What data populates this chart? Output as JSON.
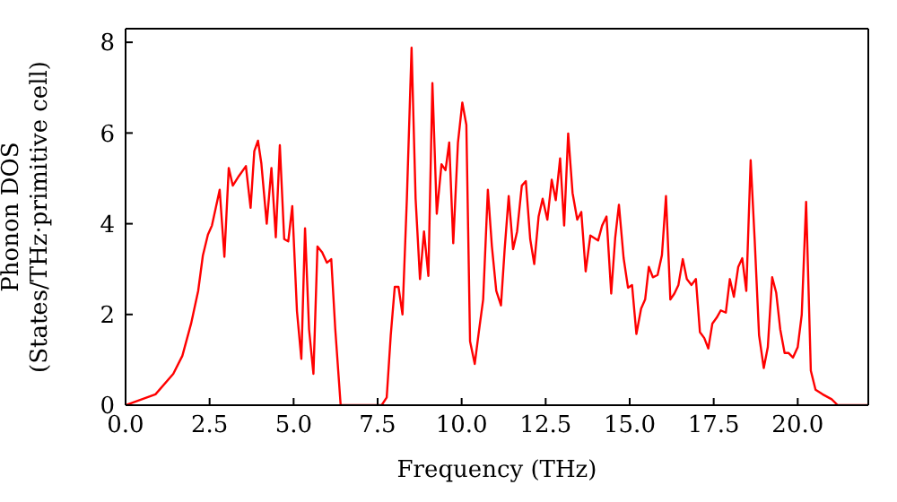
{
  "chart_data": {
    "type": "line",
    "xlabel": "Frequency (THz)",
    "ylabel": "Phonon DOS\n(States/THz·primitive cell)",
    "xlim": [
      0,
      22.1
    ],
    "xticks": [
      {
        "value": 0,
        "label": "0.0"
      },
      {
        "value": 2.5,
        "label": "2.5"
      },
      {
        "value": 5,
        "label": "5.0"
      },
      {
        "value": 7.5,
        "label": "7.5"
      },
      {
        "value": 10,
        "label": "10.0"
      },
      {
        "value": 12.5,
        "label": "12.5"
      },
      {
        "value": 15,
        "label": "15.0"
      },
      {
        "value": 17.5,
        "label": "17.5"
      },
      {
        "value": 20,
        "label": "20.0"
      }
    ],
    "ylim": [
      0,
      8.3
    ],
    "yticks": [
      0,
      2,
      4,
      6,
      8
    ],
    "marker": "none",
    "line_style": "solid",
    "series": [
      {
        "color": "#ff0000",
        "x": [
          0,
          0.89,
          1.42,
          1.69,
          1.95,
          2.16,
          2.3,
          2.45,
          2.57,
          2.8,
          2.94,
          3.07,
          3.19,
          3.37,
          3.58,
          3.72,
          3.83,
          3.94,
          4.04,
          4.2,
          4.34,
          4.47,
          4.59,
          4.72,
          4.84,
          4.96,
          5.1,
          5.23,
          5.34,
          5.46,
          5.59,
          5.71,
          5.85,
          5.99,
          6.12,
          6.24,
          6.4,
          7.62,
          7.77,
          7.89,
          8.01,
          8.12,
          8.24,
          8.37,
          8.51,
          8.63,
          8.76,
          8.88,
          9.01,
          9.13,
          9.26,
          9.4,
          9.52,
          9.63,
          9.75,
          9.89,
          10.02,
          10.14,
          10.25,
          10.39,
          10.51,
          10.64,
          10.78,
          10.9,
          11.03,
          11.17,
          11.28,
          11.4,
          11.53,
          11.65,
          11.79,
          11.91,
          12.04,
          12.16,
          12.29,
          12.41,
          12.55,
          12.68,
          12.8,
          12.93,
          13.05,
          13.17,
          13.3,
          13.44,
          13.56,
          13.69,
          13.83,
          14.06,
          14.18,
          14.31,
          14.45,
          14.57,
          14.68,
          14.82,
          14.95,
          15.07,
          15.2,
          15.34,
          15.46,
          15.57,
          15.69,
          15.83,
          15.96,
          16.08,
          16.21,
          16.33,
          16.45,
          16.58,
          16.7,
          16.84,
          16.97,
          17.09,
          17.22,
          17.34,
          17.46,
          17.59,
          17.71,
          17.86,
          17.98,
          18.1,
          18.23,
          18.35,
          18.47,
          18.6,
          18.72,
          18.85,
          18.99,
          19.11,
          19.24,
          19.36,
          19.48,
          19.61,
          19.73,
          19.86,
          20.0,
          20.12,
          20.25,
          20.39,
          20.53,
          20.74,
          21.01,
          21.19,
          22.1
        ],
        "values": [
          0,
          0.24,
          0.69,
          1.09,
          1.8,
          2.52,
          3.3,
          3.76,
          3.96,
          4.75,
          3.27,
          5.23,
          4.84,
          5.05,
          5.27,
          4.35,
          5.6,
          5.83,
          5.33,
          4.0,
          5.23,
          3.7,
          5.73,
          3.66,
          3.61,
          4.39,
          2.07,
          1.02,
          3.9,
          1.67,
          0.69,
          3.5,
          3.37,
          3.14,
          3.22,
          1.67,
          0,
          0,
          0.17,
          1.54,
          2.61,
          2.61,
          2.0,
          4.55,
          7.88,
          4.55,
          2.78,
          3.83,
          2.85,
          7.1,
          4.22,
          5.31,
          5.18,
          5.79,
          3.57,
          5.79,
          6.67,
          6.18,
          1.41,
          0.91,
          1.61,
          2.33,
          4.75,
          3.5,
          2.52,
          2.2,
          3.44,
          4.61,
          3.44,
          3.83,
          4.84,
          4.94,
          3.66,
          3.11,
          4.16,
          4.55,
          4.09,
          4.97,
          4.52,
          5.44,
          3.96,
          5.99,
          4.68,
          4.09,
          4.26,
          2.95,
          3.74,
          3.63,
          3.96,
          4.16,
          2.46,
          3.7,
          4.42,
          3.24,
          2.59,
          2.65,
          1.57,
          2.13,
          2.33,
          3.05,
          2.82,
          2.87,
          3.31,
          4.61,
          2.33,
          2.46,
          2.65,
          3.22,
          2.78,
          2.65,
          2.78,
          1.61,
          1.48,
          1.25,
          1.8,
          1.93,
          2.09,
          2.04,
          2.78,
          2.39,
          3.05,
          3.24,
          2.52,
          5.4,
          3.63,
          1.54,
          0.82,
          1.28,
          2.82,
          2.48,
          1.67,
          1.15,
          1.15,
          1.05,
          1.28,
          2.0,
          4.48,
          0.76,
          0.34,
          0.24,
          0.13,
          0,
          0
        ]
      }
    ]
  }
}
